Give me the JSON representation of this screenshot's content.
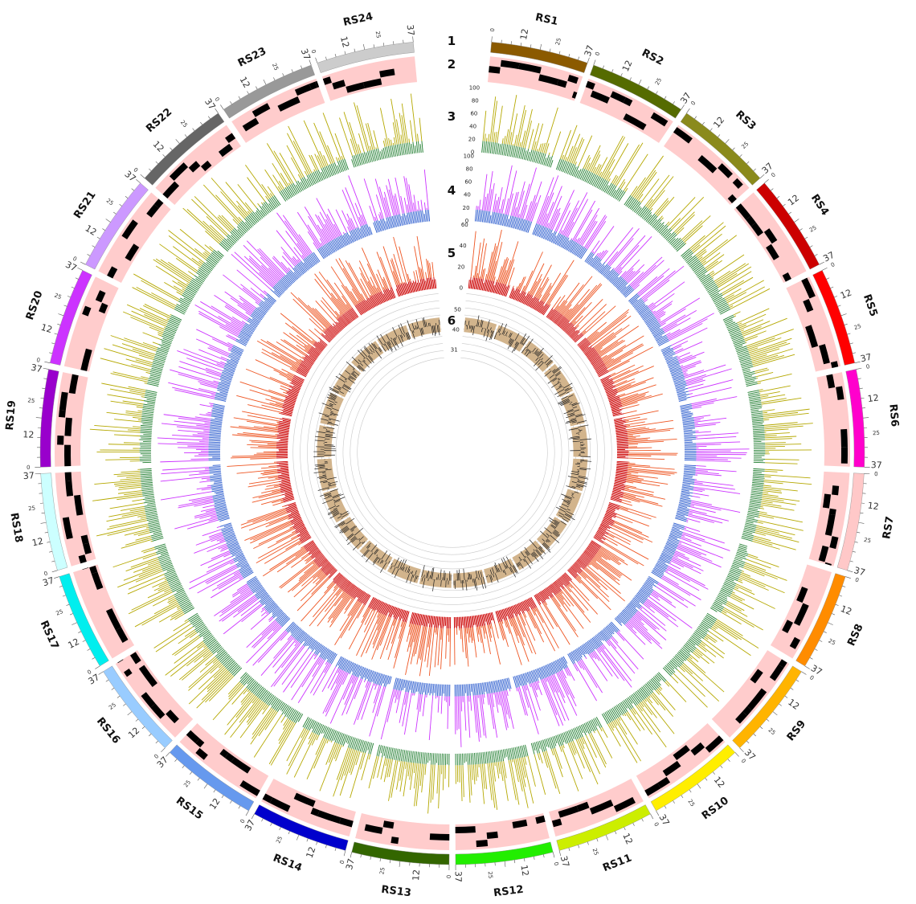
{
  "track_numbers": [
    "1",
    "2",
    "3",
    "4",
    "5",
    "6"
  ],
  "tick_labels": {
    "zero": "0",
    "mid": "12",
    "small": "25",
    "end": "37"
  },
  "chromosomes": [
    {
      "label": "RS1",
      "color": "#8b5a00"
    },
    {
      "label": "RS2",
      "color": "#556b00"
    },
    {
      "label": "RS3",
      "color": "#8a8a1c"
    },
    {
      "label": "RS4",
      "color": "#cc0000"
    },
    {
      "label": "RS5",
      "color": "#ff0000"
    },
    {
      "label": "RS6",
      "color": "#ff00cc"
    },
    {
      "label": "RS7",
      "color": "#ffc8c8"
    },
    {
      "label": "RS8",
      "color": "#ff8c00"
    },
    {
      "label": "RS9",
      "color": "#ffb400"
    },
    {
      "label": "RS10",
      "color": "#ffee00"
    },
    {
      "label": "RS11",
      "color": "#ccee00"
    },
    {
      "label": "RS12",
      "color": "#22ee00"
    },
    {
      "label": "RS13",
      "color": "#336600"
    },
    {
      "label": "RS14",
      "color": "#0000cc"
    },
    {
      "label": "RS15",
      "color": "#6699ee"
    },
    {
      "label": "RS16",
      "color": "#99ccff"
    },
    {
      "label": "RS17",
      "color": "#00eeee"
    },
    {
      "label": "RS18",
      "color": "#ccffff"
    },
    {
      "label": "RS19",
      "color": "#9900cc"
    },
    {
      "label": "RS20",
      "color": "#cc33ff"
    },
    {
      "label": "RS21",
      "color": "#cc99ff"
    },
    {
      "label": "RS22",
      "color": "#666666"
    },
    {
      "label": "RS23",
      "color": "#999999"
    },
    {
      "label": "RS24",
      "color": "#cccccc"
    }
  ],
  "track_axes": {
    "track3": [
      "0",
      "20",
      "40",
      "60",
      "80",
      "100"
    ],
    "track4": [
      "0",
      "20",
      "40",
      "60",
      "80",
      "100"
    ],
    "track5": [
      "0",
      "20",
      "40",
      "60"
    ],
    "track6": [
      "31",
      "40",
      "50"
    ]
  },
  "colors": {
    "segment_bg": "#ffcccc",
    "segment_block": "#000000",
    "track3_base": "#1a7a2a",
    "track3_top": "#b5a800",
    "track4_base": "#2255cc",
    "track4_top": "#cc33ff",
    "track5_base": "#cc0000",
    "track5_top": "#ee5522",
    "track6_fill": "#d2b48c",
    "track6_line": "#222222",
    "grid": "#c8c8c8"
  }
}
